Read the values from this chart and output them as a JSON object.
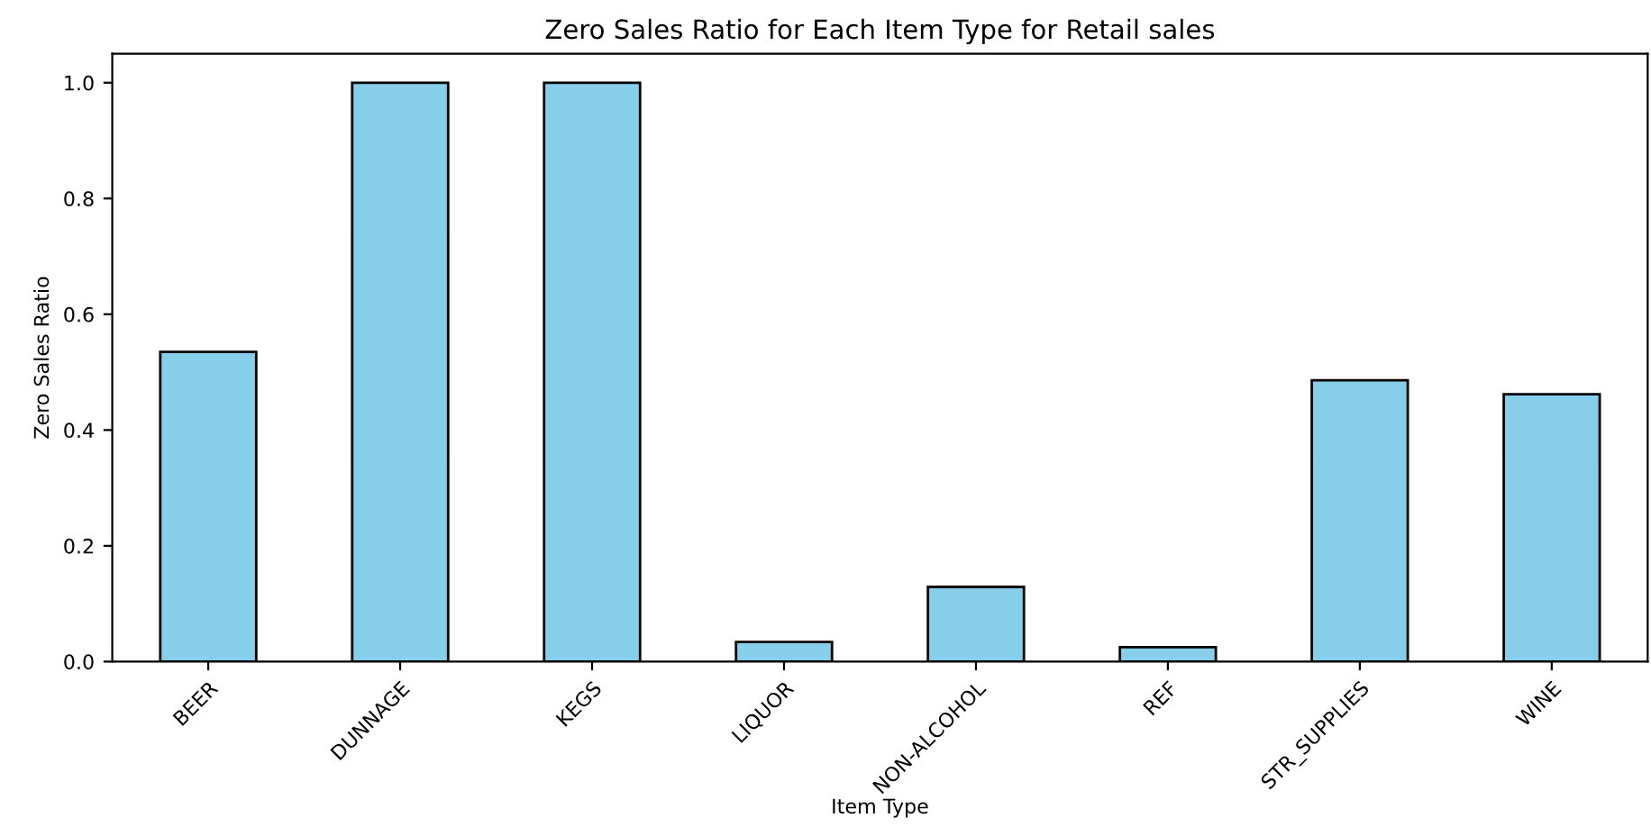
{
  "chart_data": {
    "type": "bar",
    "title": "Zero Sales Ratio for Each Item Type for Retail sales",
    "xlabel": "Item Type",
    "ylabel": "Zero Sales Ratio",
    "categories": [
      "BEER",
      "DUNNAGE",
      "KEGS",
      "LIQUOR",
      "NON-ALCOHOL",
      "REF",
      "STR_SUPPLIES",
      "WINE"
    ],
    "values": [
      0.535,
      1.0,
      1.0,
      0.034,
      0.129,
      0.025,
      0.486,
      0.462
    ],
    "color": "#87ceeb",
    "ylim": [
      0,
      1.05
    ],
    "yticks": [
      {
        "value": 0,
        "label": "0.0"
      },
      {
        "value": 0.2,
        "label": "0.2"
      },
      {
        "value": 0.4,
        "label": "0.4"
      },
      {
        "value": 0.6,
        "label": "0.6"
      },
      {
        "value": 0.8,
        "label": "0.8"
      },
      {
        "value": 1.0,
        "label": "1.0"
      }
    ],
    "grid": false
  }
}
